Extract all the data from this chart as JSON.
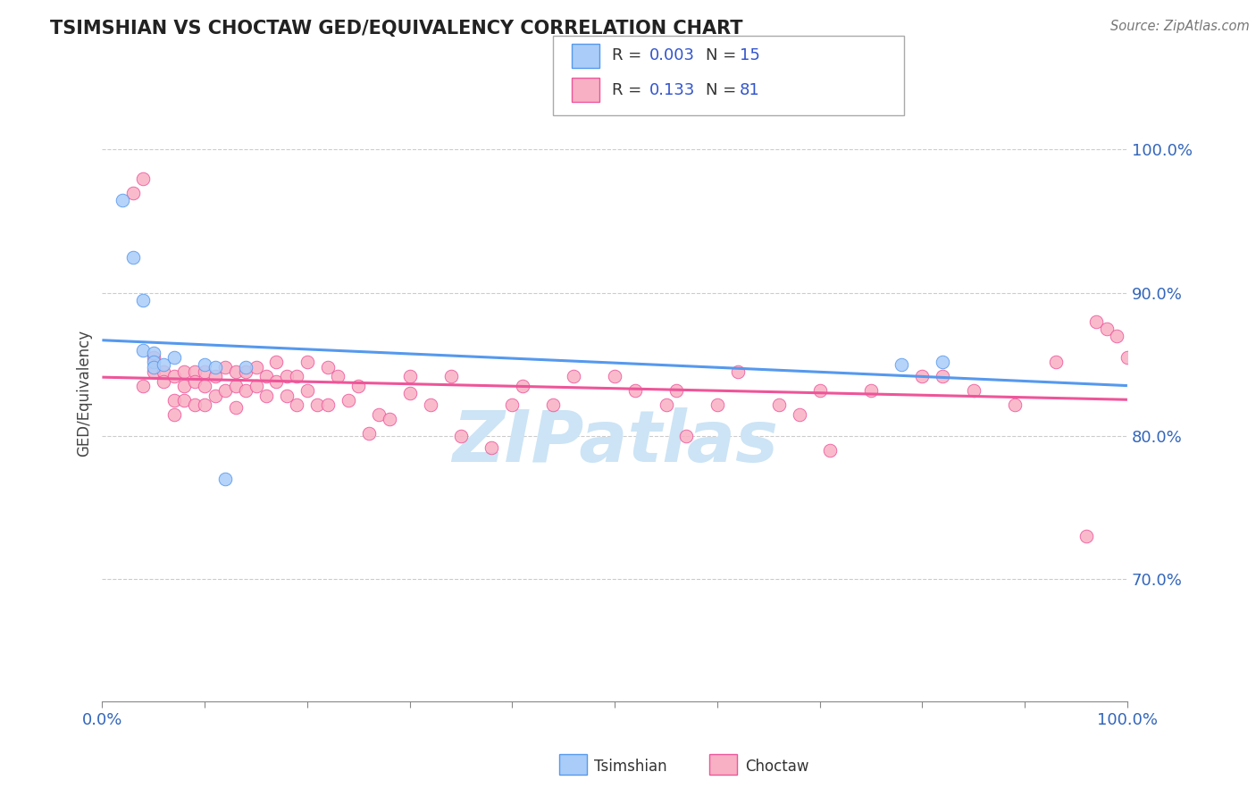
{
  "title": "TSIMSHIAN VS CHOCTAW GED/EQUIVALENCY CORRELATION CHART",
  "source": "Source: ZipAtlas.com",
  "ylabel": "GED/Equivalency",
  "ytick_labels": [
    "70.0%",
    "80.0%",
    "90.0%",
    "100.0%"
  ],
  "ytick_values": [
    0.7,
    0.8,
    0.9,
    1.0
  ],
  "xmin": 0.0,
  "xmax": 1.0,
  "ymin": 0.615,
  "ymax": 1.045,
  "legend_R1": "0.003",
  "legend_N1": "15",
  "legend_R2": "0.133",
  "legend_N2": "81",
  "tsimshian_color": "#aaccf8",
  "choctaw_color": "#f8b0c4",
  "tsimshian_line_color": "#5599ee",
  "choctaw_line_color": "#ee5599",
  "watermark": "ZIPatlas",
  "watermark_color": "#cce4f5",
  "grid_color": "#cccccc",
  "tsimshian_x": [
    0.02,
    0.03,
    0.04,
    0.04,
    0.05,
    0.05,
    0.05,
    0.06,
    0.07,
    0.1,
    0.11,
    0.12,
    0.14,
    0.78,
    0.82
  ],
  "tsimshian_y": [
    0.965,
    0.925,
    0.895,
    0.86,
    0.858,
    0.852,
    0.848,
    0.85,
    0.855,
    0.85,
    0.848,
    0.77,
    0.848,
    0.85,
    0.852
  ],
  "choctaw_x": [
    0.03,
    0.04,
    0.04,
    0.05,
    0.05,
    0.06,
    0.06,
    0.07,
    0.07,
    0.07,
    0.08,
    0.08,
    0.08,
    0.09,
    0.09,
    0.09,
    0.1,
    0.1,
    0.1,
    0.11,
    0.11,
    0.12,
    0.12,
    0.13,
    0.13,
    0.13,
    0.14,
    0.14,
    0.15,
    0.15,
    0.16,
    0.16,
    0.17,
    0.17,
    0.18,
    0.18,
    0.19,
    0.19,
    0.2,
    0.2,
    0.21,
    0.22,
    0.22,
    0.23,
    0.24,
    0.25,
    0.26,
    0.27,
    0.28,
    0.3,
    0.3,
    0.32,
    0.34,
    0.35,
    0.38,
    0.4,
    0.41,
    0.44,
    0.46,
    0.5,
    0.52,
    0.55,
    0.56,
    0.57,
    0.6,
    0.62,
    0.66,
    0.68,
    0.7,
    0.71,
    0.75,
    0.8,
    0.82,
    0.85,
    0.89,
    0.93,
    0.96,
    0.97,
    0.98,
    0.99,
    1.0
  ],
  "choctaw_y": [
    0.97,
    0.98,
    0.835,
    0.855,
    0.845,
    0.845,
    0.838,
    0.842,
    0.825,
    0.815,
    0.845,
    0.835,
    0.825,
    0.845,
    0.838,
    0.822,
    0.845,
    0.835,
    0.822,
    0.842,
    0.828,
    0.848,
    0.832,
    0.845,
    0.835,
    0.82,
    0.845,
    0.832,
    0.848,
    0.835,
    0.842,
    0.828,
    0.852,
    0.838,
    0.842,
    0.828,
    0.842,
    0.822,
    0.852,
    0.832,
    0.822,
    0.848,
    0.822,
    0.842,
    0.825,
    0.835,
    0.802,
    0.815,
    0.812,
    0.842,
    0.83,
    0.822,
    0.842,
    0.8,
    0.792,
    0.822,
    0.835,
    0.822,
    0.842,
    0.842,
    0.832,
    0.822,
    0.832,
    0.8,
    0.822,
    0.845,
    0.822,
    0.815,
    0.832,
    0.79,
    0.832,
    0.842,
    0.842,
    0.832,
    0.822,
    0.852,
    0.73,
    0.88,
    0.875,
    0.87,
    0.855
  ]
}
